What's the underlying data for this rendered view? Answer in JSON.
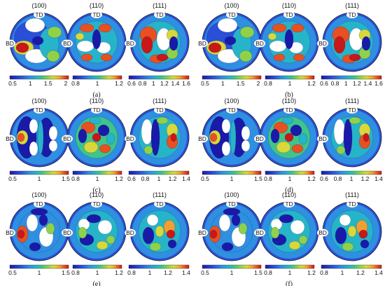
{
  "panels": [
    {
      "id": "a",
      "caption": "(a)",
      "variant": 0,
      "poles": [
        "(100)",
        "(110)",
        "(111)"
      ],
      "bars": [
        [
          "0.5",
          "1",
          "1.5",
          "2"
        ],
        [
          "0.8",
          "1",
          "1.2"
        ],
        [
          "0.6",
          "0.8",
          "1",
          "1.2",
          "1.4",
          "1.6"
        ]
      ]
    },
    {
      "id": "b",
      "caption": "(b)",
      "variant": 0,
      "poles": [
        "(100)",
        "(110)",
        "(111)"
      ],
      "bars": [
        [
          "0.5",
          "1",
          "1.5",
          "2"
        ],
        [
          "0.8",
          "1",
          "1.2"
        ],
        [
          "0.6",
          "0.8",
          "1",
          "1.2",
          "1.4",
          "1.6"
        ]
      ]
    },
    {
      "id": "c",
      "caption": "(c)",
      "variant": 1,
      "poles": [
        "(100)",
        "(110)",
        "(111)"
      ],
      "bars": [
        [
          "0.5",
          "1",
          "1.5"
        ],
        [
          "0.8",
          "1",
          "1.2"
        ],
        [
          "0.6",
          "0.8",
          "1",
          "1.2",
          "1.4"
        ]
      ]
    },
    {
      "id": "d",
      "caption": "(d)",
      "variant": 1,
      "poles": [
        "(100)",
        "(110)",
        "(111)"
      ],
      "bars": [
        [
          "0.5",
          "1",
          "1.5"
        ],
        [
          "0.8",
          "1",
          "1.2"
        ],
        [
          "0.6",
          "0.8",
          "1",
          "1.2",
          "1.4"
        ]
      ]
    },
    {
      "id": "e",
      "caption": "(e)",
      "variant": 2,
      "poles": [
        "(100)",
        "(110)",
        "(111)"
      ],
      "bars": [
        [
          "0.5",
          "1",
          "1.5"
        ],
        [
          "0.8",
          "1",
          "1.2"
        ],
        [
          "0.8",
          "1",
          "1.2",
          "1.4"
        ]
      ]
    },
    {
      "id": "f",
      "caption": "(f)",
      "variant": 2,
      "poles": [
        "(100)",
        "(110)",
        "(111)"
      ],
      "bars": [
        [
          "0.5",
          "1",
          "1.5"
        ],
        [
          "0.8",
          "1",
          "1.2"
        ],
        [
          "0.8",
          "1",
          "1.2",
          "1.4"
        ]
      ]
    }
  ],
  "axis_labels": {
    "td": "TD",
    "bd": "BD"
  },
  "colors": {
    "scale": [
      "#1a1aa8",
      "#2a4fd8",
      "#2f8fe0",
      "#26b4c8",
      "#3fc48a",
      "#8fd24a",
      "#d8d83a",
      "#f0a030",
      "#e85020",
      "#c81818"
    ],
    "background": "#ffffff"
  }
}
